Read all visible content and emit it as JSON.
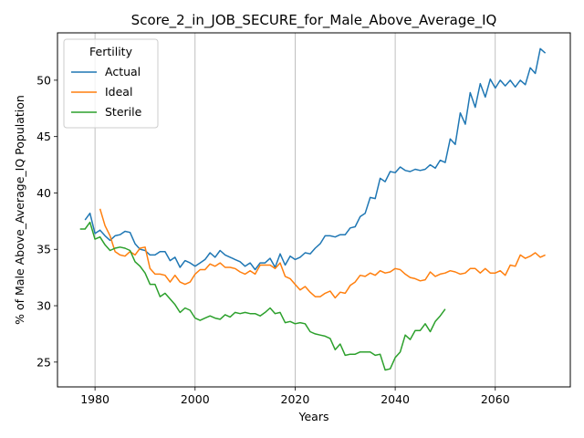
{
  "chart_data": {
    "type": "line",
    "title": "Score_2_in_JOB_SECURE_for_Male_Above_Average_IQ",
    "xlabel": "Years",
    "ylabel": "% of Male Above_Average_IQ Population",
    "xlim": [
      1972.5,
      2075
    ],
    "ylim": [
      22.8,
      54.2
    ],
    "xticks": [
      1980,
      2000,
      2020,
      2040,
      2060
    ],
    "yticks": [
      25,
      30,
      35,
      40,
      45,
      50
    ],
    "grid": "x-only",
    "legend": {
      "title": "Fertility",
      "position": "top-left"
    },
    "series": [
      {
        "name": "Actual",
        "color": "#1f77b4",
        "x": [
          1978,
          1979,
          1980,
          1981,
          1982,
          1983,
          1984,
          1985,
          1986,
          1987,
          1988,
          1989,
          1990,
          1991,
          1992,
          1993,
          1994,
          1995,
          1996,
          1997,
          1998,
          1999,
          2000,
          2001,
          2002,
          2003,
          2004,
          2005,
          2006,
          2007,
          2008,
          2009,
          2010,
          2011,
          2012,
          2013,
          2014,
          2015,
          2016,
          2017,
          2018,
          2019,
          2020,
          2021,
          2022,
          2023,
          2024,
          2025,
          2026,
          2027,
          2028,
          2029,
          2030,
          2031,
          2032,
          2033,
          2034,
          2035,
          2036,
          2037,
          2038,
          2039,
          2040,
          2041,
          2042,
          2043,
          2044,
          2045,
          2046,
          2047,
          2048,
          2049,
          2050,
          2051,
          2052,
          2053,
          2054,
          2055,
          2056,
          2057,
          2058,
          2059,
          2060,
          2061,
          2062,
          2063,
          2064,
          2065,
          2066,
          2067,
          2068,
          2069,
          2070
        ],
        "y": [
          37.6,
          38.2,
          36.4,
          36.7,
          36.2,
          35.8,
          36.2,
          36.3,
          36.6,
          36.5,
          35.5,
          35.0,
          34.9,
          34.5,
          34.5,
          34.8,
          34.8,
          34.0,
          34.3,
          33.4,
          34.0,
          33.8,
          33.5,
          33.8,
          34.1,
          34.7,
          34.3,
          34.9,
          34.5,
          34.3,
          34.1,
          33.9,
          33.5,
          33.8,
          33.2,
          33.8,
          33.8,
          34.2,
          33.4,
          34.6,
          33.6,
          34.4,
          34.1,
          34.3,
          34.7,
          34.6,
          35.1,
          35.5,
          36.2,
          36.2,
          36.1,
          36.3,
          36.3,
          36.9,
          37.0,
          37.9,
          38.2,
          39.6,
          39.5,
          41.3,
          41.0,
          41.9,
          41.8,
          42.3,
          42.0,
          41.9,
          42.1,
          42.0,
          42.1,
          42.5,
          42.2,
          42.9,
          42.7,
          44.8,
          44.3,
          47.1,
          46.1,
          48.9,
          47.6,
          49.7,
          48.5,
          50.1,
          49.3,
          50.0,
          49.5,
          50.0,
          49.4,
          50.0,
          49.6,
          51.1,
          50.6,
          52.8,
          52.4
        ]
      },
      {
        "name": "Ideal",
        "color": "#ff7f0e",
        "x": [
          1981,
          1982,
          1983,
          1984,
          1985,
          1986,
          1987,
          1988,
          1989,
          1990,
          1991,
          1992,
          1993,
          1994,
          1995,
          1996,
          1997,
          1998,
          1999,
          2000,
          2001,
          2002,
          2003,
          2004,
          2005,
          2006,
          2007,
          2008,
          2009,
          2010,
          2011,
          2012,
          2013,
          2014,
          2015,
          2016,
          2017,
          2018,
          2019,
          2020,
          2021,
          2022,
          2023,
          2024,
          2025,
          2026,
          2027,
          2028,
          2029,
          2030,
          2031,
          2032,
          2033,
          2034,
          2035,
          2036,
          2037,
          2038,
          2039,
          2040,
          2041,
          2042,
          2043,
          2044,
          2045,
          2046,
          2047,
          2048,
          2049,
          2050,
          2051,
          2052,
          2053,
          2054,
          2055,
          2056,
          2057,
          2058,
          2059,
          2060,
          2061,
          2062,
          2063,
          2064,
          2065,
          2066,
          2067,
          2068,
          2069,
          2070
        ],
        "y": [
          38.6,
          37.1,
          36.2,
          34.8,
          34.5,
          34.4,
          34.8,
          34.5,
          35.1,
          35.2,
          33.3,
          32.8,
          32.8,
          32.7,
          32.1,
          32.7,
          32.1,
          31.9,
          32.1,
          32.8,
          33.2,
          33.2,
          33.7,
          33.5,
          33.8,
          33.4,
          33.4,
          33.3,
          33.0,
          32.8,
          33.1,
          32.8,
          33.6,
          33.6,
          33.6,
          33.3,
          33.8,
          32.6,
          32.4,
          31.9,
          31.4,
          31.7,
          31.2,
          30.8,
          30.8,
          31.1,
          31.3,
          30.7,
          31.2,
          31.1,
          31.8,
          32.1,
          32.7,
          32.6,
          32.9,
          32.7,
          33.1,
          32.9,
          33.0,
          33.3,
          33.2,
          32.8,
          32.5,
          32.4,
          32.2,
          32.3,
          33.0,
          32.6,
          32.8,
          32.9,
          33.1,
          33.0,
          32.8,
          32.9,
          33.3,
          33.3,
          32.9,
          33.3,
          32.9,
          32.9,
          33.1,
          32.7,
          33.6,
          33.5,
          34.5,
          34.2,
          34.4,
          34.7,
          34.3,
          34.5
        ]
      },
      {
        "name": "Sterile",
        "color": "#2ca02c",
        "x": [
          1977,
          1978,
          1979,
          1980,
          1981,
          1982,
          1983,
          1984,
          1985,
          1986,
          1987,
          1988,
          1989,
          1990,
          1991,
          1992,
          1993,
          1994,
          1995,
          1996,
          1997,
          1998,
          1999,
          2000,
          2001,
          2002,
          2003,
          2004,
          2005,
          2006,
          2007,
          2008,
          2009,
          2010,
          2011,
          2012,
          2013,
          2014,
          2015,
          2016,
          2017,
          2018,
          2019,
          2020,
          2021,
          2022,
          2023,
          2024,
          2025,
          2026,
          2027,
          2028,
          2029,
          2030,
          2031,
          2032,
          2033,
          2034,
          2035,
          2036,
          2037,
          2038,
          2039,
          2040,
          2041,
          2042,
          2043,
          2044,
          2045,
          2046,
          2047,
          2048,
          2049,
          2050
        ],
        "y": [
          36.8,
          36.8,
          37.4,
          35.9,
          36.1,
          35.4,
          34.9,
          35.1,
          35.2,
          35.1,
          34.9,
          33.9,
          33.5,
          32.9,
          31.9,
          31.9,
          30.8,
          31.1,
          30.6,
          30.1,
          29.4,
          29.8,
          29.6,
          28.9,
          28.7,
          28.9,
          29.1,
          28.9,
          28.8,
          29.2,
          29.0,
          29.4,
          29.3,
          29.4,
          29.3,
          29.3,
          29.1,
          29.4,
          29.8,
          29.3,
          29.4,
          28.5,
          28.6,
          28.4,
          28.5,
          28.4,
          27.7,
          27.5,
          27.4,
          27.3,
          27.1,
          26.1,
          26.6,
          25.6,
          25.7,
          25.7,
          25.9,
          25.9,
          25.9,
          25.6,
          25.7,
          24.3,
          24.4,
          25.4,
          25.9,
          27.4,
          27.0,
          27.8,
          27.8,
          28.4,
          27.7,
          28.6,
          29.1,
          29.7
        ]
      }
    ]
  }
}
